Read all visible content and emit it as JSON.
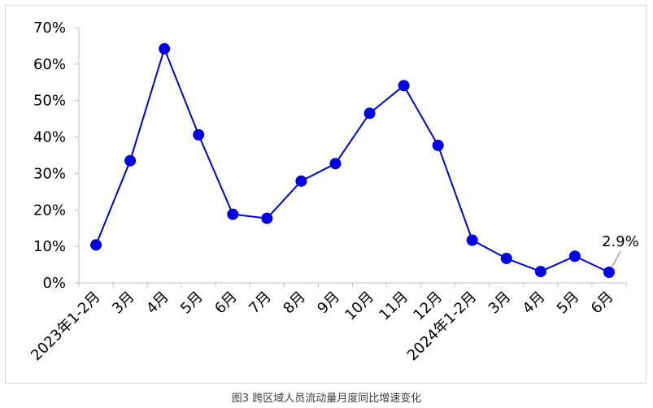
{
  "caption": "图3  跨区域人员流动量月度同比增速变化",
  "chart_data": {
    "type": "line",
    "title": "",
    "xlabel": "",
    "ylabel": "",
    "ylim": [
      0,
      70
    ],
    "y_ticks": [
      "0%",
      "10%",
      "20%",
      "30%",
      "40%",
      "50%",
      "60%",
      "70%"
    ],
    "y_tick_values": [
      0,
      10,
      20,
      30,
      40,
      50,
      60,
      70
    ],
    "grid": false,
    "legend": "none",
    "categories": [
      "2023年1-2月",
      "3月",
      "4月",
      "5月",
      "6月",
      "7月",
      "8月",
      "9月",
      "10月",
      "11月",
      "12月",
      "2024年1-2月",
      "3月",
      "4月",
      "5月",
      "6月"
    ],
    "series": [
      {
        "color": "#0000e6",
        "values": [
          10.4,
          33.5,
          64.2,
          40.6,
          18.8,
          17.7,
          27.9,
          32.7,
          46.5,
          54.1,
          37.7,
          11.7,
          6.7,
          3.1,
          7.3,
          2.9
        ]
      }
    ],
    "annotations": [
      {
        "text": "2.9%",
        "point_index": 15
      }
    ]
  }
}
